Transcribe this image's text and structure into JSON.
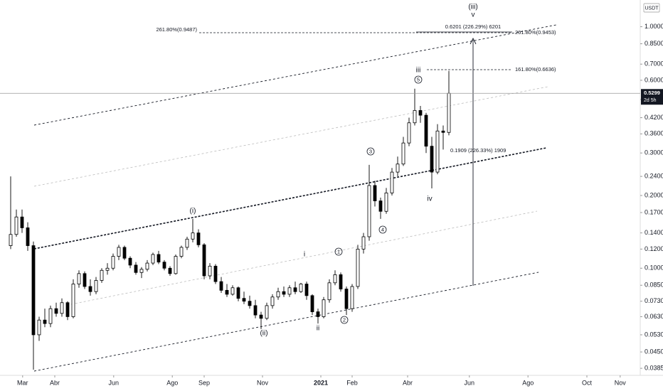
{
  "chart_data": {
    "type": "candlestick",
    "currency": "USDT",
    "y_scale": "log",
    "ylim": [
      0.036,
      1.29
    ],
    "yticks": [
      0.0385,
      {
        "value": 0.045,
        "label": "0.0450"
      },
      {
        "value": 0.053,
        "label": "0.0530"
      },
      {
        "value": 0.063,
        "label": "0.0630"
      },
      {
        "value": 0.073,
        "label": "0.0730"
      },
      {
        "value": 0.085,
        "label": "0.0850"
      },
      {
        "value": 0.1,
        "label": "0.1000"
      },
      {
        "value": 0.12,
        "label": "0.1200"
      },
      {
        "value": 0.14,
        "label": "0.1400"
      },
      {
        "value": 0.17,
        "label": "0.1700"
      },
      {
        "value": 0.2,
        "label": "0.2000"
      },
      {
        "value": 0.24,
        "label": "0.2400"
      },
      {
        "value": 0.3,
        "label": "0.3000"
      },
      {
        "value": 0.36,
        "label": "0.3600"
      },
      {
        "value": 0.42,
        "label": "0.4200"
      },
      {
        "value": 0.5,
        "label": "0.5000"
      },
      {
        "value": 0.6,
        "label": "0.6000"
      },
      {
        "value": 0.7,
        "label": "0.7000"
      },
      {
        "value": 0.85,
        "label": "0.8500"
      },
      {
        "value": 1,
        "label": "1.0000"
      }
    ],
    "xlim": [
      -1.875,
      110.625
    ],
    "xticks": [
      {
        "value": 2.1,
        "label": "Mar"
      },
      {
        "value": 7.75,
        "label": "Abr"
      },
      {
        "value": 18.1,
        "label": "Jun"
      },
      {
        "value": 28.4,
        "label": "Ago"
      },
      {
        "value": 34,
        "label": "Sep"
      },
      {
        "value": 44.25,
        "label": "Nov"
      },
      {
        "value": 54.5,
        "label": "2021"
      },
      {
        "value": 60,
        "label": "Feb"
      },
      {
        "value": 69.75,
        "label": "Abr"
      },
      {
        "value": 80.6,
        "label": "Jun"
      },
      {
        "value": 90.9,
        "label": "Ago"
      },
      {
        "value": 101.25,
        "label": "Oct"
      },
      {
        "value": 107.1,
        "label": "Nov"
      }
    ],
    "up_color": "#ffffff",
    "down_color": "#000000",
    "open": [
      0.124,
      0.138,
      0.163,
      0.147,
      0.124,
      0.053,
      0.061,
      0.059,
      0.068,
      0.065,
      0.072,
      0.063,
      0.086,
      0.095,
      0.084,
      0.08,
      0.089,
      0.098,
      0.1,
      0.112,
      0.122,
      0.11,
      0.103,
      0.096,
      0.099,
      0.105,
      0.114,
      0.106,
      0.1,
      0.095,
      0.112,
      0.122,
      0.132,
      0.14,
      0.125,
      0.093,
      0.102,
      0.088,
      0.081,
      0.078,
      0.083,
      0.075,
      0.073,
      0.07,
      0.064,
      0.062,
      0.07,
      0.076,
      0.08,
      0.078,
      0.083,
      0.08,
      0.086,
      0.077,
      0.066,
      0.063,
      0.074,
      0.087,
      0.094,
      0.082,
      0.068,
      0.084,
      0.12,
      0.135,
      0.22,
      0.19,
      0.172,
      0.205,
      0.25,
      0.27,
      0.33,
      0.4,
      0.45,
      0.43,
      0.32,
      0.25,
      0.37,
      0.365
    ],
    "high": [
      0.24,
      0.175,
      0.175,
      0.155,
      0.129,
      0.063,
      0.068,
      0.07,
      0.072,
      0.075,
      0.073,
      0.09,
      0.098,
      0.097,
      0.09,
      0.092,
      0.1,
      0.105,
      0.115,
      0.125,
      0.124,
      0.112,
      0.106,
      0.101,
      0.108,
      0.116,
      0.118,
      0.108,
      0.102,
      0.114,
      0.124,
      0.135,
      0.16,
      0.145,
      0.127,
      0.105,
      0.104,
      0.092,
      0.086,
      0.085,
      0.084,
      0.08,
      0.077,
      0.074,
      0.066,
      0.072,
      0.078,
      0.083,
      0.084,
      0.085,
      0.088,
      0.087,
      0.088,
      0.078,
      0.068,
      0.076,
      0.09,
      0.098,
      0.096,
      0.084,
      0.086,
      0.125,
      0.14,
      0.268,
      0.23,
      0.196,
      0.215,
      0.26,
      0.29,
      0.35,
      0.42,
      0.554,
      0.47,
      0.44,
      0.35,
      0.395,
      0.39,
      0.656
    ],
    "low": [
      0.12,
      0.135,
      0.14,
      0.118,
      0.038,
      0.05,
      0.057,
      0.057,
      0.063,
      0.063,
      0.061,
      0.062,
      0.083,
      0.082,
      0.077,
      0.078,
      0.087,
      0.094,
      0.098,
      0.108,
      0.108,
      0.1,
      0.094,
      0.091,
      0.097,
      0.103,
      0.104,
      0.098,
      0.093,
      0.094,
      0.11,
      0.119,
      0.128,
      0.122,
      0.09,
      0.09,
      0.086,
      0.079,
      0.076,
      0.077,
      0.073,
      0.071,
      0.068,
      0.062,
      0.056,
      0.061,
      0.068,
      0.074,
      0.076,
      0.076,
      0.078,
      0.079,
      0.074,
      0.064,
      0.059,
      0.062,
      0.072,
      0.085,
      0.08,
      0.064,
      0.066,
      0.082,
      0.115,
      0.13,
      0.18,
      0.16,
      0.168,
      0.2,
      0.24,
      0.265,
      0.32,
      0.39,
      0.4,
      0.3,
      0.214,
      0.245,
      0.31,
      0.355
    ],
    "close": [
      0.138,
      0.163,
      0.147,
      0.124,
      0.053,
      0.061,
      0.059,
      0.068,
      0.065,
      0.072,
      0.063,
      0.086,
      0.095,
      0.084,
      0.08,
      0.089,
      0.098,
      0.1,
      0.112,
      0.122,
      0.11,
      0.103,
      0.096,
      0.099,
      0.105,
      0.114,
      0.106,
      0.1,
      0.095,
      0.112,
      0.122,
      0.132,
      0.14,
      0.125,
      0.093,
      0.102,
      0.088,
      0.081,
      0.078,
      0.083,
      0.075,
      0.073,
      0.07,
      0.064,
      0.062,
      0.07,
      0.076,
      0.08,
      0.078,
      0.083,
      0.08,
      0.086,
      0.077,
      0.066,
      0.063,
      0.074,
      0.087,
      0.094,
      0.082,
      0.068,
      0.084,
      0.12,
      0.135,
      0.22,
      0.19,
      0.172,
      0.205,
      0.25,
      0.27,
      0.33,
      0.4,
      0.45,
      0.43,
      0.32,
      0.25,
      0.37,
      0.365,
      0.53
    ],
    "last_price": 0.5299,
    "countdown": "2d 5h",
    "annotations": [
      "(iii)",
      "v",
      "(i)",
      "(ii)",
      "i",
      "ii",
      "iii",
      "iv",
      "1",
      "2",
      "3",
      "4",
      "5",
      "261.80%(0.9487)",
      "0.6201 (226.29%) 6201",
      "261.80%(0.9453)",
      "161.80%(0.6636)",
      "0.1909 (226.33%) 1909"
    ]
  }
}
